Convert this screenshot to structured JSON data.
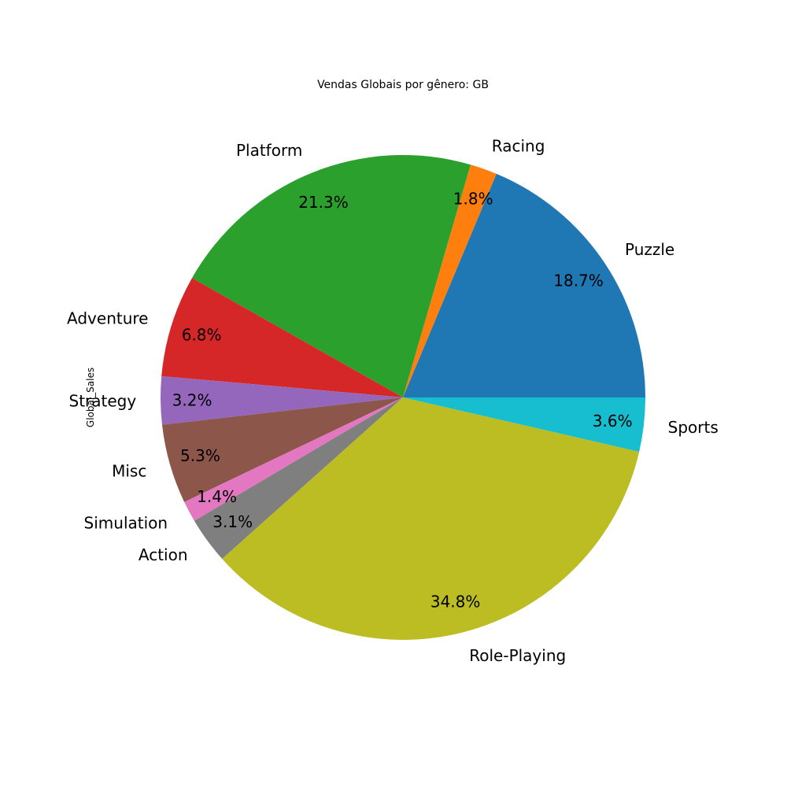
{
  "chart_data": {
    "type": "pie",
    "title": "Vendas Globais por gênero: GB",
    "ylabel": "Global_Sales",
    "start_angle_deg": 0,
    "direction": "counterclockwise",
    "slices": [
      {
        "label": "Puzzle",
        "pct_text": "18.7%",
        "value": 18.7,
        "color": "#1f77b4"
      },
      {
        "label": "Racing",
        "pct_text": "1.8%",
        "value": 1.8,
        "color": "#ff7f0e"
      },
      {
        "label": "Platform",
        "pct_text": "21.3%",
        "value": 21.3,
        "color": "#2ca02c"
      },
      {
        "label": "Adventure",
        "pct_text": "6.8%",
        "value": 6.8,
        "color": "#d62728"
      },
      {
        "label": "Strategy",
        "pct_text": "3.2%",
        "value": 3.2,
        "color": "#9467bd"
      },
      {
        "label": "Misc",
        "pct_text": "5.3%",
        "value": 5.3,
        "color": "#8c564b"
      },
      {
        "label": "Simulation",
        "pct_text": "1.4%",
        "value": 1.4,
        "color": "#e377c2"
      },
      {
        "label": "Action",
        "pct_text": "3.1%",
        "value": 3.1,
        "color": "#7f7f7f"
      },
      {
        "label": "Role-Playing",
        "pct_text": "34.8%",
        "value": 34.8,
        "color": "#bcbd22"
      },
      {
        "label": "Sports",
        "pct_text": "3.6%",
        "value": 3.6,
        "color": "#17becf"
      }
    ]
  }
}
